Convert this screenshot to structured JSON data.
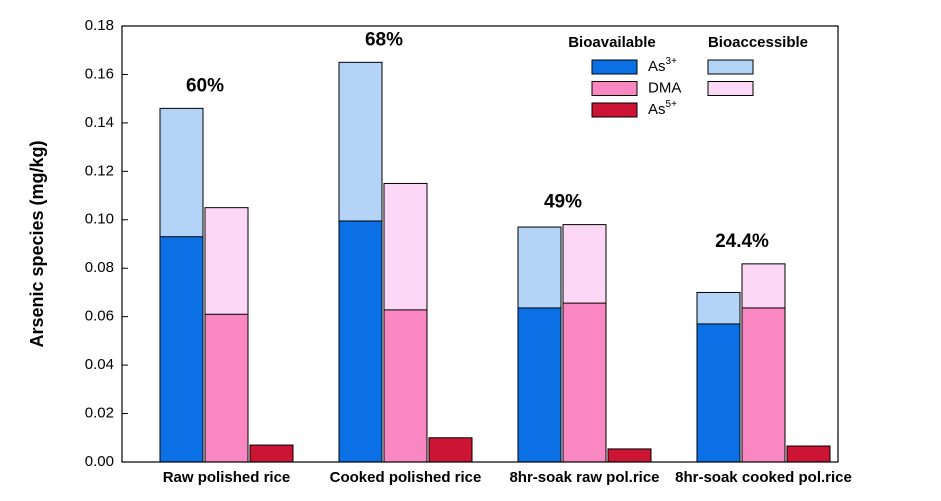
{
  "chart_data": {
    "type": "bar",
    "y_label": "Arsenic species (mg/kg)",
    "categories": [
      "Raw polished rice",
      "Cooked polished rice",
      "8hr-soak raw pol.rice",
      "8hr-soak cooked pol.rice"
    ],
    "annotations": [
      "60%",
      "68%",
      "49%",
      "24.4%"
    ],
    "legend_columns": [
      "Bioavailable",
      "Bioaccessible"
    ],
    "series": [
      {
        "name": "As",
        "superscript": "3+",
        "colors": [
          "#0b6fe6",
          "#b3d4f7"
        ],
        "values": [
          0.093,
          0.0995,
          0.0636,
          0.057
        ],
        "bioaccessible_values": [
          0.146,
          0.165,
          0.097,
          0.07
        ]
      },
      {
        "name": "DMA",
        "colors": [
          "#f887c2",
          "#fcd8f6"
        ],
        "values": [
          0.061,
          0.0628,
          0.0656,
          0.0636
        ],
        "bioaccessible_values": [
          0.105,
          0.115,
          0.098,
          0.0818
        ]
      },
      {
        "name": "As",
        "superscript": "5+",
        "colors": [
          "#cc1535"
        ],
        "values": [
          0.007,
          0.01,
          0.0054,
          0.0066
        ]
      }
    ],
    "ylim": [
      0,
      0.18
    ],
    "yticks": [
      {
        "value": 0,
        "label": "0.00"
      },
      {
        "value": 0.02,
        "label": "0.02"
      },
      {
        "value": 0.04,
        "label": "0.04"
      },
      {
        "value": 0.06,
        "label": "0.06"
      },
      {
        "value": 0.08,
        "label": "0.08"
      },
      {
        "value": 0.1,
        "label": "0.10"
      },
      {
        "value": 0.12,
        "label": "0.12"
      },
      {
        "value": 0.14,
        "label": "0.14"
      },
      {
        "value": 0.16,
        "label": "0.16"
      },
      {
        "value": 0.18,
        "label": "0.18"
      }
    ]
  }
}
